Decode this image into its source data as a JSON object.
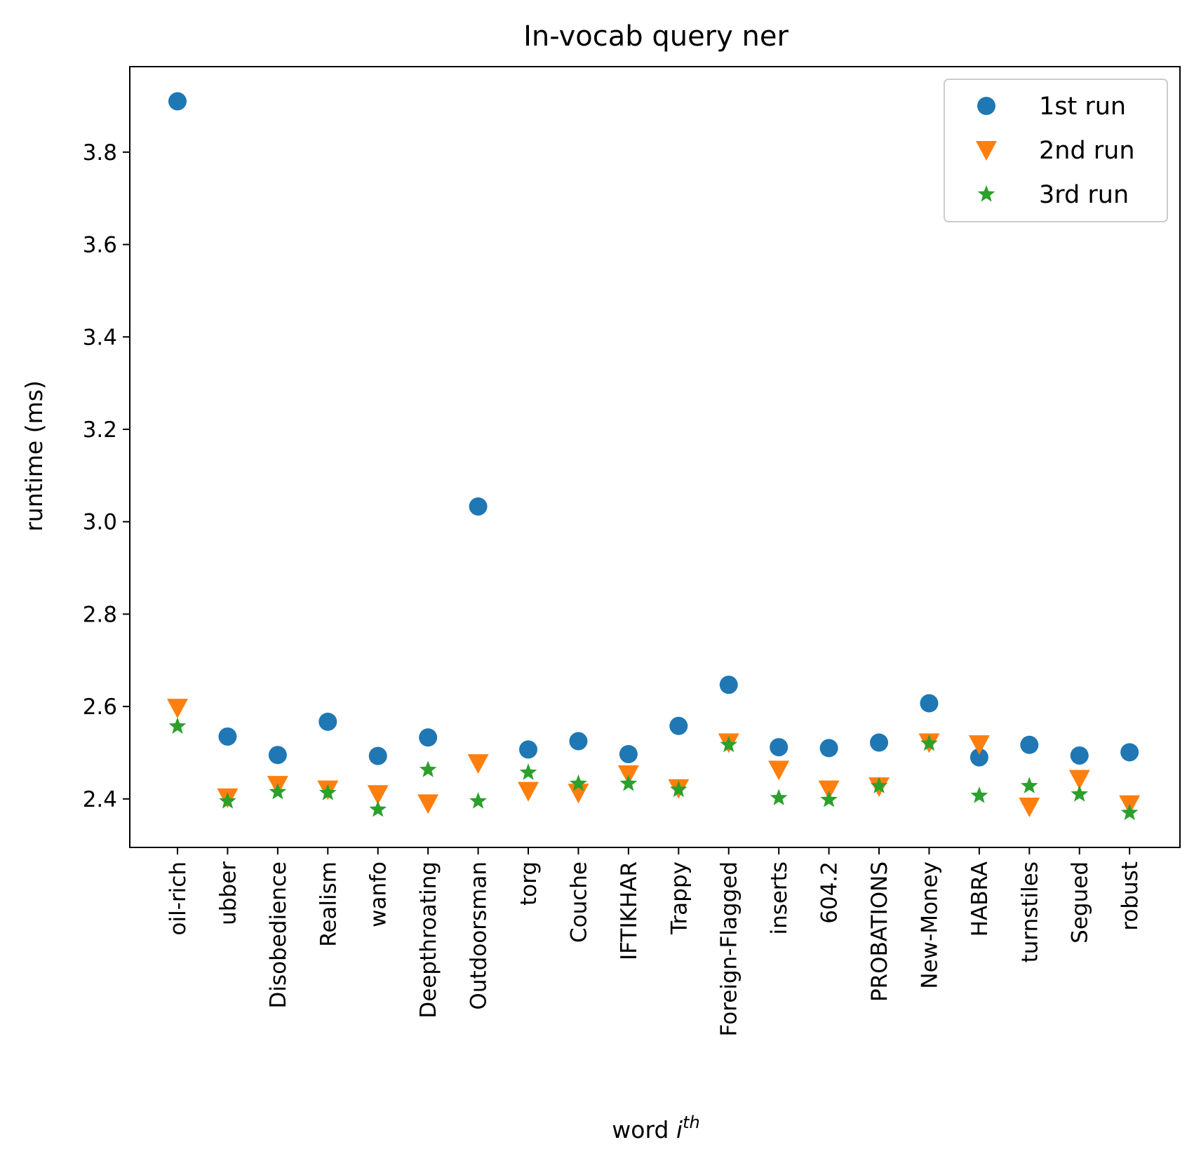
{
  "chart_data": {
    "type": "scatter",
    "title": "In-vocab query ner",
    "xlabel": "word ",
    "xlabel_var": "i",
    "xlabel_sup": "th",
    "ylabel": "runtime (ms)",
    "ylim": [
      2.295,
      3.985
    ],
    "yticks": [
      2.4,
      2.6,
      2.8,
      3.0,
      3.2,
      3.4,
      3.6,
      3.8
    ],
    "ytick_labels": [
      "2.4",
      "2.6",
      "2.8",
      "3.0",
      "3.2",
      "3.4",
      "3.6",
      "3.8"
    ],
    "categories": [
      "oil-rich",
      "ubber",
      "Disobedience",
      "Realism",
      "wanfo",
      "Deepthroating",
      "Outdoorsman",
      "torg",
      "Couche",
      "IFTIKHAR",
      "Trappy",
      "Foreign-Flagged",
      "inserts",
      "604.2",
      "PROBATIONS",
      "New-Money",
      "HABRA",
      "turnstiles",
      "Segued",
      "robust"
    ],
    "grid": false,
    "legend_position": "top-right",
    "series": [
      {
        "name": "1st run",
        "marker": "circle",
        "color": "#1f77b4",
        "values": [
          3.91,
          2.535,
          2.495,
          2.567,
          2.493,
          2.533,
          3.033,
          2.507,
          2.525,
          2.497,
          2.558,
          2.647,
          2.512,
          2.51,
          2.522,
          2.607,
          2.49,
          2.517,
          2.494,
          2.501
        ]
      },
      {
        "name": "2nd run",
        "marker": "triangle-down",
        "color": "#ff7f0e",
        "values": [
          2.597,
          2.403,
          2.43,
          2.42,
          2.41,
          2.39,
          2.477,
          2.417,
          2.413,
          2.453,
          2.423,
          2.522,
          2.463,
          2.42,
          2.427,
          2.522,
          2.518,
          2.383,
          2.443,
          2.388
        ]
      },
      {
        "name": "3rd run",
        "marker": "star",
        "color": "#2ca02c",
        "values": [
          2.557,
          2.395,
          2.415,
          2.413,
          2.377,
          2.463,
          2.395,
          2.457,
          2.433,
          2.433,
          2.42,
          2.517,
          2.402,
          2.398,
          2.428,
          2.52,
          2.407,
          2.428,
          2.41,
          2.37
        ]
      }
    ]
  }
}
